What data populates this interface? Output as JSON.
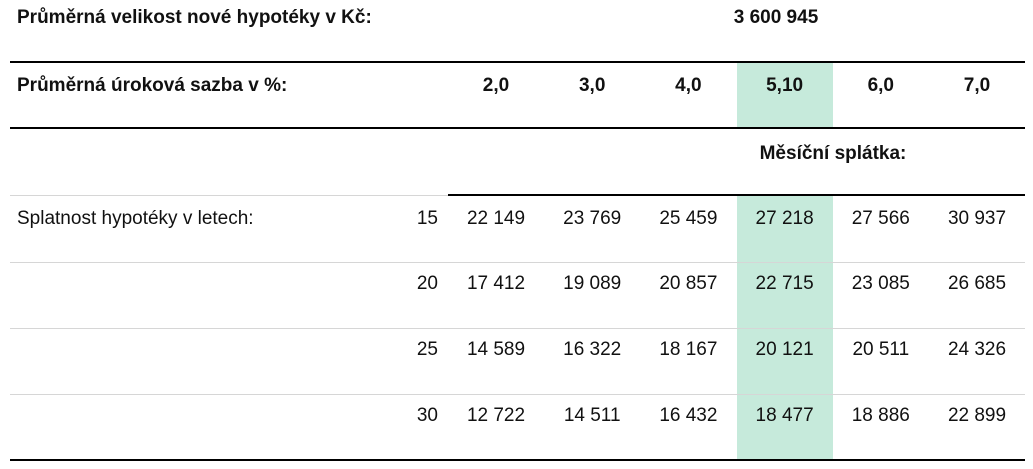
{
  "header": {
    "label": "Průměrná velikost nové hypotéky v Kč:",
    "value": "3 600 945"
  },
  "rates": {
    "label": "Průměrná úroková sazba v %:",
    "values": [
      "2,0",
      "3,0",
      "4,0",
      "5,10",
      "6,0",
      "7,0"
    ]
  },
  "payment_label": "Měsíční splátka:",
  "table": {
    "label": "Splatnost hypotéky v letech:",
    "rows": [
      {
        "term": "15",
        "values": [
          "22 149",
          "23 769",
          "25 459",
          "27 218",
          "27 566",
          "30 937"
        ]
      },
      {
        "term": "20",
        "values": [
          "17 412",
          "19 089",
          "20 857",
          "22 715",
          "23 085",
          "26 685"
        ]
      },
      {
        "term": "25",
        "values": [
          "14 589",
          "16 322",
          "18 167",
          "20 121",
          "20 511",
          "24 326"
        ]
      },
      {
        "term": "30",
        "values": [
          "12 722",
          "14 511",
          "16 432",
          "18 477",
          "18 886",
          "22 899"
        ]
      }
    ]
  }
}
